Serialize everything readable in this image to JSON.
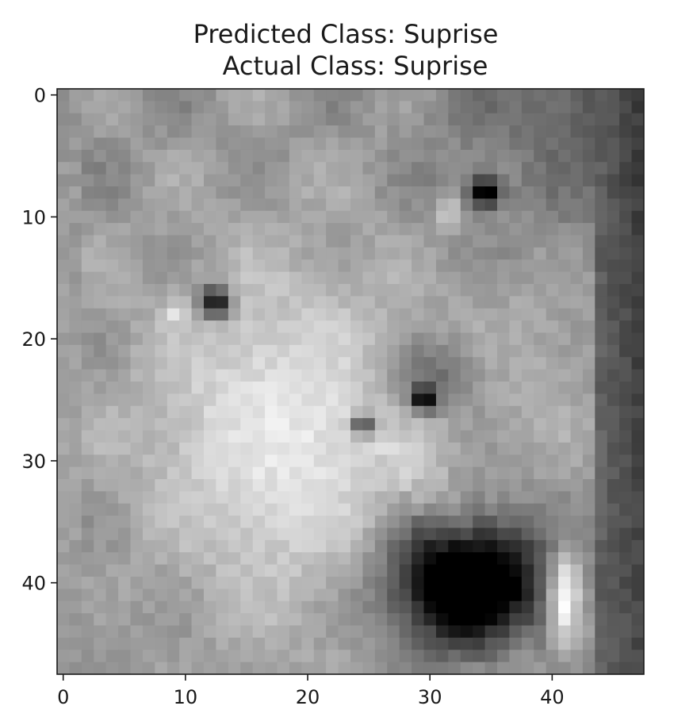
{
  "chart_data": {
    "type": "heatmap",
    "title_lines": [
      "Predicted Class: Suprise",
      "Actual Class: Suprise"
    ],
    "xlabel": "",
    "ylabel": "",
    "colormap": "gray",
    "image_size": [
      48,
      48
    ],
    "x_ticks": [
      0,
      10,
      20,
      30,
      40
    ],
    "y_ticks": [
      0,
      10,
      20,
      30,
      40
    ],
    "xlim": [
      -0.5,
      47.5
    ],
    "ylim": [
      47.5,
      -0.5
    ],
    "x_tick_labels": [
      "0",
      "10",
      "20",
      "30",
      "40"
    ],
    "y_tick_labels": [
      "0",
      "10",
      "20",
      "30",
      "40"
    ]
  }
}
